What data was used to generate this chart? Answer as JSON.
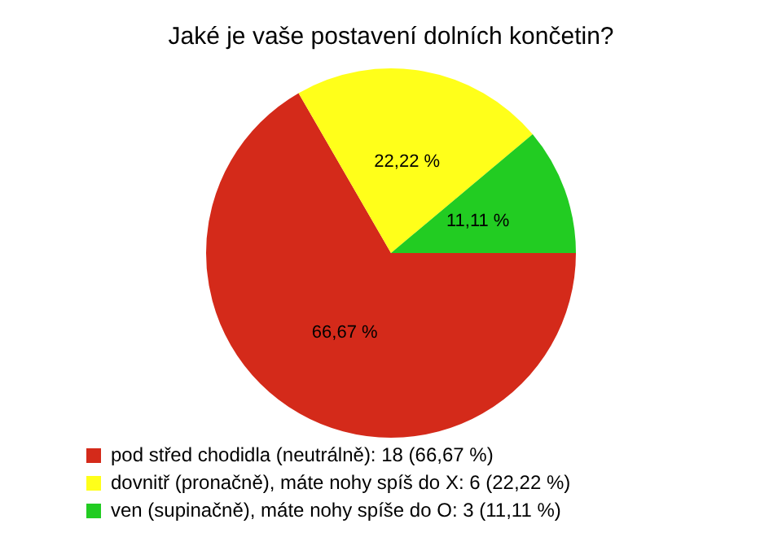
{
  "chart_data": {
    "type": "pie",
    "title": "Jaké je vaše postavení dolních končetin?",
    "categories": [
      "pod střed chodidla (neutrálně): 18 (66,67 %)",
      "dovnitř (pronačně), máte nohy spíš do X: 6 (22,22 %)",
      "ven (supinačně), máte nohy spíše do O: 3 (11,11 %)"
    ],
    "values": [
      66.67,
      22.22,
      11.11
    ],
    "value_labels": [
      "66,67 %",
      "22,22 %",
      "11,11 %"
    ],
    "colors": [
      "#d42a1a",
      "#ffff1a",
      "#22cc22"
    ],
    "legend": "bottom"
  }
}
